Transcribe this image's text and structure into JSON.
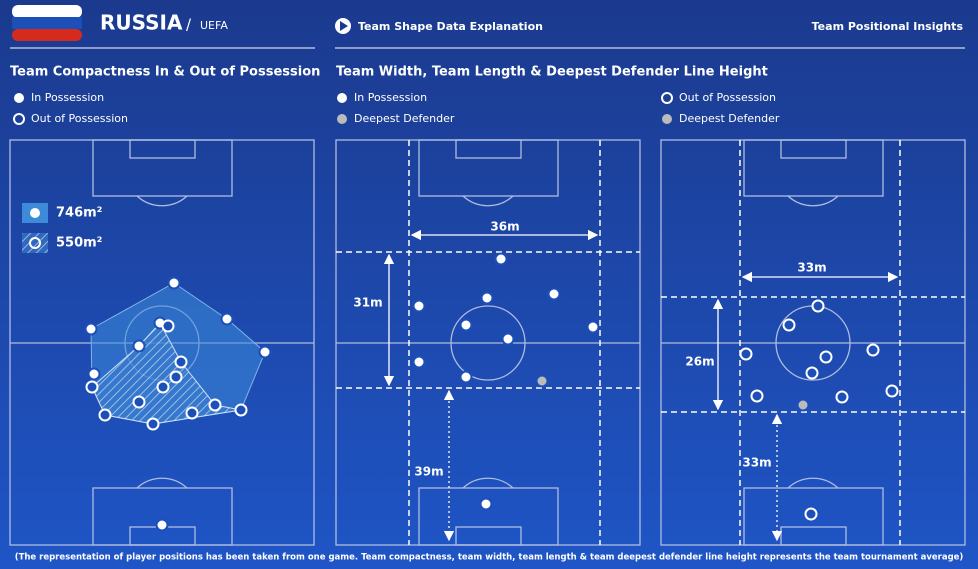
{
  "header": {
    "team": "RUSSIA",
    "separator": "/",
    "confederation": "UEFA",
    "link": "Team Shape Data Explanation",
    "section": "Team Positional Insights"
  },
  "compactness": {
    "title": "Team Compactness In & Out of Possession",
    "legend": [
      "In Possession",
      "Out of Possession"
    ],
    "areas": [
      "746m²",
      "550m²"
    ]
  },
  "shape": {
    "title": "Team Width, Team Length & Deepest  Defender Line Height",
    "in_possession": {
      "legend": [
        "In Possession",
        "Deepest Defender"
      ],
      "width": "36m",
      "length": "31m",
      "defender_line": "39m"
    },
    "out_of_possession": {
      "legend": [
        "Out of Possession",
        "Deepest Defender"
      ],
      "width": "33m",
      "length": "26m",
      "defender_line": "33m"
    }
  },
  "footnote": "(The representation of player positions has been taken from one game. Team compactness, team width, team length & team deepest defender line height represents the team tournament average)"
}
